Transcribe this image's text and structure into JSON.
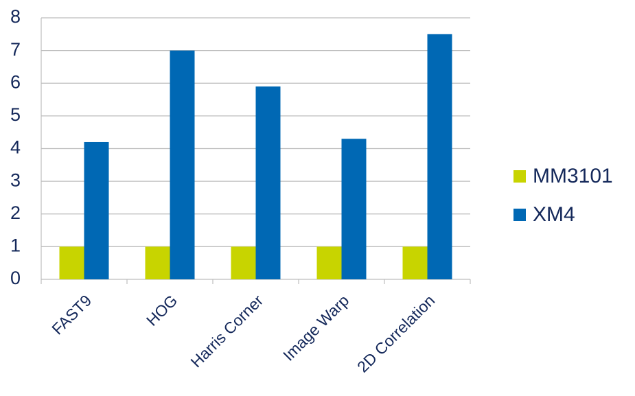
{
  "chart_data": {
    "type": "bar",
    "categories": [
      "FAST9",
      "HOG",
      "Harris Corner",
      "Image Warp",
      "2D Correlation"
    ],
    "series": [
      {
        "name": "MM3101",
        "color": "#c8d400",
        "values": [
          1,
          1,
          1,
          1,
          1
        ]
      },
      {
        "name": "XM4",
        "color": "#0068b4",
        "values": [
          4.2,
          7,
          5.9,
          4.3,
          7.5
        ]
      }
    ],
    "ylim": [
      0,
      8
    ],
    "yticks": [
      0,
      1,
      2,
      3,
      4,
      5,
      6,
      7,
      8
    ],
    "grid": true,
    "legend": "right"
  }
}
